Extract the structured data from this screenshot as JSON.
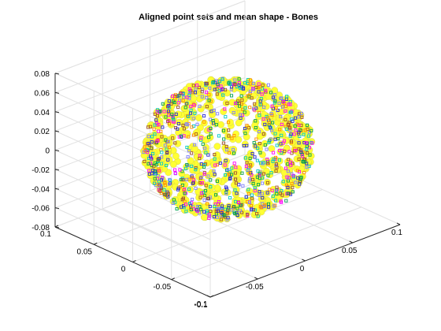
{
  "chart_data": {
    "type": "scatter",
    "projection": "3d",
    "title": "Aligned point sets and mean shape - Bones",
    "xlabel": "",
    "ylabel": "",
    "zlabel": "",
    "grid": true,
    "xlim": [
      -0.1,
      0.1
    ],
    "ylim": [
      -0.1,
      0.1
    ],
    "zlim": [
      -0.08,
      0.08
    ],
    "x_ticks": [
      "-0.1",
      "-0.05",
      "0",
      "0.05",
      "0.1"
    ],
    "y_ticks": [
      "-0.1",
      "-0.05",
      "0",
      "0.05",
      "0.1"
    ],
    "z_ticks": [
      "-0.08",
      "-0.06",
      "-0.04",
      "-0.02",
      "0",
      "0.02",
      "0.04",
      "0.06",
      "0.08"
    ],
    "x_tick_values": [
      -0.1,
      -0.05,
      0,
      0.05,
      0.1
    ],
    "y_tick_values": [
      -0.1,
      -0.05,
      0,
      0.05,
      0.1
    ],
    "z_tick_values": [
      -0.08,
      -0.06,
      -0.04,
      -0.02,
      0,
      0.02,
      0.04,
      0.06,
      0.08
    ],
    "mean_shape": {
      "marker": "filled-patch",
      "color": "#ffff33",
      "edge_color": "#b8b84a"
    },
    "series_colors": [
      "#ff00ff",
      "#2a2ad6",
      "#00a050",
      "#a0522d",
      "#8080ff",
      "#ff8c00",
      "#00c8c8"
    ],
    "point_cloud": {
      "center": [
        0.0,
        0.0,
        0.0
      ],
      "radii": [
        0.065,
        0.07,
        0.062
      ],
      "marker": "square"
    }
  }
}
